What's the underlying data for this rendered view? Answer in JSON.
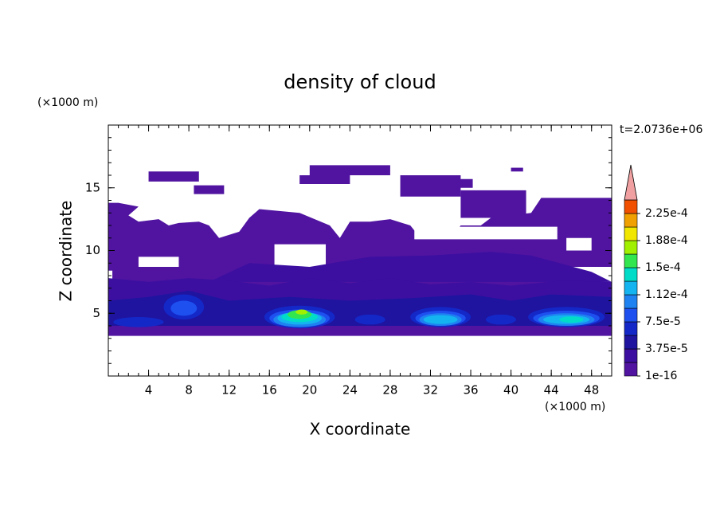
{
  "chart_data": {
    "type": "contour",
    "title": "density of cloud",
    "xlabel": "X coordinate",
    "ylabel": "Z coordinate",
    "x_unit": "(×1000 m)",
    "y_unit": "(×1000 m)",
    "time_label": "t=2.0736e+06",
    "xlim": [
      0,
      50
    ],
    "ylim": [
      0,
      20
    ],
    "xticks": [
      4,
      8,
      12,
      16,
      20,
      24,
      28,
      32,
      36,
      40,
      44,
      48
    ],
    "yticks": [
      5,
      10,
      15
    ],
    "colorbar": {
      "clim": [
        1e-16,
        0.00024375
      ],
      "ticks": [
        {
          "value": 1e-16,
          "label": "1e-16"
        },
        {
          "value": 3.75e-05,
          "label": "3.75e-5"
        },
        {
          "value": 7.5e-05,
          "label": "7.5e-5"
        },
        {
          "value": 0.0001125,
          "label": "1.12e-4"
        },
        {
          "value": 0.00015,
          "label": "1.5e-4"
        },
        {
          "value": 0.0001875,
          "label": "1.88e-4"
        },
        {
          "value": 0.000225,
          "label": "2.25e-4"
        }
      ],
      "colors": [
        "#5014a0",
        "#3c0fa0",
        "#1e14a0",
        "#1428c8",
        "#1e50f0",
        "#1e82f0",
        "#14b4f0",
        "#00dcc8",
        "#32e650",
        "#a0f000",
        "#f0e600",
        "#f0a000",
        "#f05000"
      ],
      "extend_color": "#f0a0a0"
    }
  }
}
